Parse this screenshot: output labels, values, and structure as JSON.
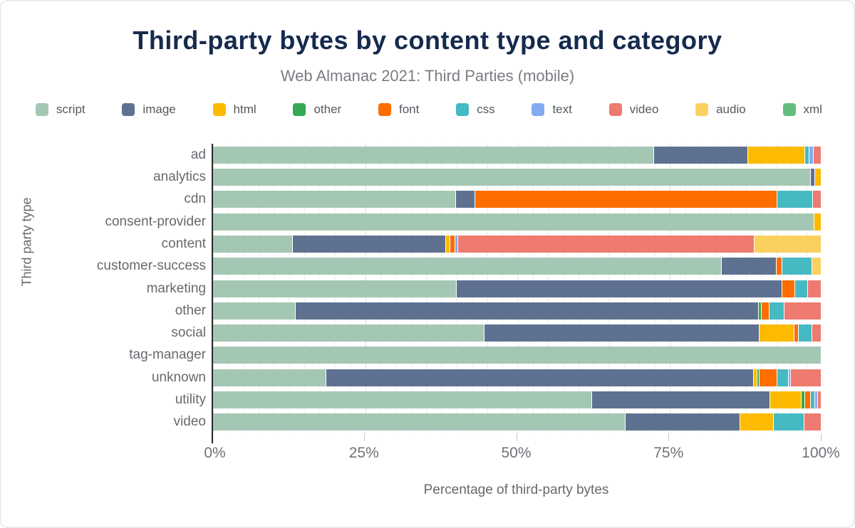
{
  "header": {
    "title": "Third-party bytes by content type and category",
    "subtitle": "Web Almanac 2021: Third Parties (mobile)"
  },
  "colors": {
    "title": "#152a4e",
    "subtitle": "#797d82",
    "axis_text": "#66696e"
  },
  "chart_data": {
    "type": "bar",
    "orientation": "horizontal-stacked",
    "title": "Third-party bytes by content type and category",
    "subtitle": "Web Almanac 2021: Third Parties (mobile)",
    "xlabel": "Percentage of third-party bytes",
    "ylabel": "Third party type",
    "xlim": [
      0,
      100
    ],
    "xticks": [
      {
        "value": 0,
        "label": "0%"
      },
      {
        "value": 25,
        "label": "25%"
      },
      {
        "value": 50,
        "label": "50%"
      },
      {
        "value": 75,
        "label": "75%"
      },
      {
        "value": 100,
        "label": "100%"
      }
    ],
    "grid": "vertical-dotted",
    "legend_position": "top",
    "categories": [
      "ad",
      "analytics",
      "cdn",
      "consent-provider",
      "content",
      "customer-success",
      "marketing",
      "other",
      "social",
      "tag-manager",
      "unknown",
      "utility",
      "video"
    ],
    "series": [
      {
        "name": "script",
        "color": "#a4c7b4",
        "values": [
          72.5,
          98.3,
          39.9,
          98.8,
          13.0,
          83.6,
          40.0,
          13.5,
          44.6,
          100.0,
          18.5,
          62.3,
          67.8
        ]
      },
      {
        "name": "image",
        "color": "#5e7191",
        "values": [
          15.4,
          0.7,
          3.1,
          0,
          25.2,
          9.0,
          53.5,
          76.2,
          45.2,
          0,
          70.4,
          29.3,
          18.8
        ]
      },
      {
        "name": "html",
        "color": "#fcba00",
        "values": [
          9.4,
          1.0,
          0,
          1.2,
          0.7,
          0,
          0,
          0,
          5.7,
          0,
          0.5,
          5.1,
          5.6
        ]
      },
      {
        "name": "other",
        "color": "#34a853",
        "values": [
          0,
          0,
          0,
          0,
          0,
          0,
          0,
          0.4,
          0,
          0,
          0.4,
          0.6,
          0
        ]
      },
      {
        "name": "font",
        "color": "#fe6d00",
        "values": [
          0,
          0,
          49.7,
          0,
          0.8,
          0.9,
          2.2,
          1.4,
          0.7,
          0,
          2.9,
          0.9,
          0
        ]
      },
      {
        "name": "css",
        "color": "#45bac3",
        "values": [
          0.7,
          0,
          5.9,
          0,
          0,
          5.0,
          2.1,
          2.4,
          2.3,
          0,
          1.9,
          0.7,
          5.0
        ]
      },
      {
        "name": "text",
        "color": "#84abf2",
        "values": [
          0.7,
          0,
          0,
          0,
          0.5,
          0,
          0,
          0,
          0,
          0,
          0.4,
          0.5,
          0
        ]
      },
      {
        "name": "video",
        "color": "#ee7a70",
        "values": [
          1.3,
          0,
          1.4,
          0,
          48.8,
          0,
          2.2,
          6.1,
          1.5,
          0,
          5.0,
          0.6,
          2.8
        ]
      },
      {
        "name": "audio",
        "color": "#fad05f",
        "values": [
          0,
          0,
          0,
          0,
          11.0,
          1.5,
          0,
          0,
          0,
          0,
          0,
          0,
          0
        ]
      },
      {
        "name": "xml",
        "color": "#63bd7e",
        "values": [
          0,
          0,
          0,
          0,
          0,
          0,
          0,
          0,
          0,
          0,
          0,
          0,
          0
        ]
      }
    ]
  }
}
